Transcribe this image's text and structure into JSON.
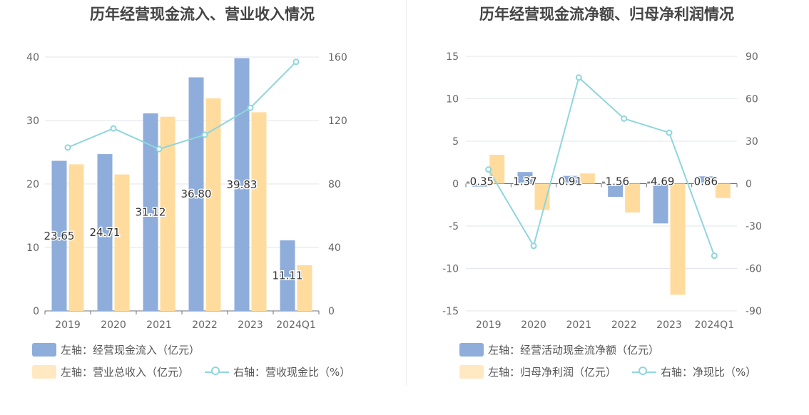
{
  "chart_data": [
    {
      "type": "bar",
      "title": "历年经营现金流入、营业收入情况",
      "categories": [
        "2019",
        "2020",
        "2021",
        "2022",
        "2023",
        "2024Q1"
      ],
      "left_axis": {
        "ylim": [
          0,
          40
        ],
        "ticks": [
          "0",
          "10",
          "20",
          "30",
          "40"
        ]
      },
      "right_axis": {
        "ylim": [
          0,
          160
        ],
        "ticks": [
          "0",
          "40",
          "80",
          "120",
          "160"
        ]
      },
      "series": [
        {
          "name": "左轴：经营现金流入（亿元）",
          "type": "bar",
          "axis": "left",
          "color": "#8eaddb",
          "values": [
            23.65,
            24.71,
            31.12,
            36.8,
            39.83,
            11.11
          ],
          "labels": [
            "23.65",
            "24.71",
            "31.12",
            "36.80",
            "39.83",
            "11.11"
          ]
        },
        {
          "name": "左轴：营业总收入（亿元）",
          "type": "bar",
          "axis": "left",
          "color": "#ffdc9e",
          "values": [
            23.1,
            21.5,
            30.6,
            33.5,
            31.3,
            7.2
          ]
        },
        {
          "name": "右轴：营收现金比（%）",
          "type": "line",
          "axis": "right",
          "color": "#8fd6dc",
          "values": [
            103,
            115,
            102,
            111,
            128,
            157
          ]
        }
      ]
    },
    {
      "type": "bar",
      "title": "历年经营现金流净额、归母净利润情况",
      "categories": [
        "2019",
        "2020",
        "2021",
        "2022",
        "2023",
        "2024Q1"
      ],
      "left_axis": {
        "ylim": [
          -15,
          15
        ],
        "ticks": [
          "-15",
          "-10",
          "-5",
          "0",
          "5",
          "10",
          "15"
        ]
      },
      "right_axis": {
        "ylim": [
          -90,
          90
        ],
        "ticks": [
          "-90",
          "-60",
          "-30",
          "0",
          "30",
          "60",
          "90"
        ]
      },
      "series": [
        {
          "name": "左轴：经营活动现金流净额（亿元）",
          "type": "bar",
          "axis": "left",
          "color": "#8eaddb",
          "values": [
            -0.35,
            1.37,
            0.91,
            -1.56,
            -4.69,
            0.86
          ],
          "labels": [
            "-0.35",
            "1.37",
            "0.91",
            "-1.56",
            "-4.69",
            "0.86"
          ]
        },
        {
          "name": "左轴：归母净利润（亿元）",
          "type": "bar",
          "axis": "left",
          "color": "#ffdc9e",
          "values": [
            3.4,
            -3.1,
            1.2,
            -3.4,
            -13.1,
            -1.7
          ]
        },
        {
          "name": "右轴：净现比（%）",
          "type": "line",
          "axis": "right",
          "color": "#8fd6dc",
          "values": [
            10,
            -44,
            75,
            46,
            36,
            -51
          ]
        }
      ]
    }
  ]
}
